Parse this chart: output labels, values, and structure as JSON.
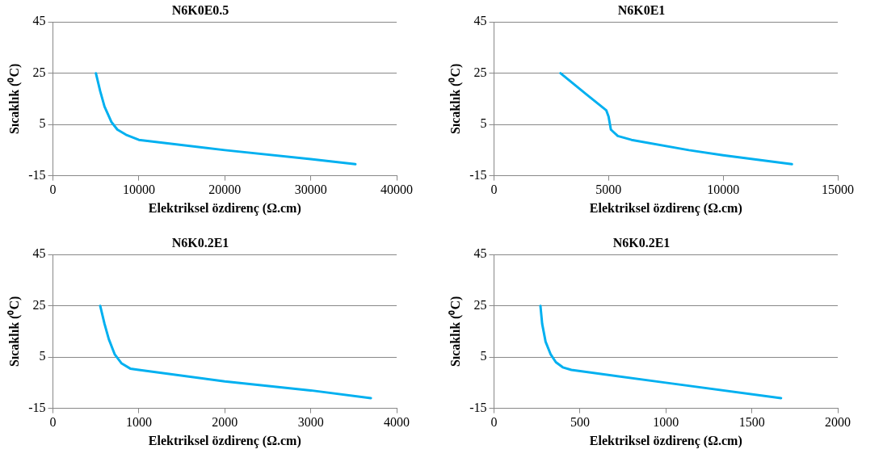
{
  "chart_data": [
    {
      "type": "line",
      "title": "N6K0E0.5",
      "xlabel": "Elektriksel özdirenç (Ω.cm)",
      "ylabel": "Sıcaklık (⁰C)",
      "grid": "y",
      "legend": false,
      "marker": "none",
      "line_style": "solid",
      "xlim": [
        0,
        40000
      ],
      "xticks": [
        0,
        10000,
        20000,
        30000,
        40000
      ],
      "ylim": [
        -15,
        45
      ],
      "yticks": [
        -15,
        5,
        25,
        45
      ],
      "series": [
        {
          "color": "#00b0f0",
          "x": [
            5000,
            5500,
            6000,
            6800,
            7500,
            8500,
            10000,
            20000,
            30000,
            35200
          ],
          "values": [
            25,
            18,
            12,
            6,
            3,
            1,
            -1,
            -5,
            -8.5,
            -10.5
          ]
        }
      ]
    },
    {
      "type": "line",
      "title": "N6K0E1",
      "xlabel": "Elektriksel özdirenç (Ω.cm)",
      "ylabel": "Sıcaklık (⁰C)",
      "grid": "y",
      "legend": false,
      "marker": "none",
      "line_style": "solid",
      "xlim": [
        0,
        15000
      ],
      "xticks": [
        0,
        5000,
        10000,
        15000
      ],
      "ylim": [
        -15,
        45
      ],
      "yticks": [
        -15,
        5,
        25,
        45
      ],
      "series": [
        {
          "color": "#00b0f0",
          "x": [
            2900,
            4000,
            4900,
            5000,
            5100,
            5400,
            6000,
            8500,
            10000,
            13000
          ],
          "values": [
            25,
            17,
            10.5,
            8,
            3,
            0.5,
            -1,
            -5,
            -7,
            -10.5
          ]
        }
      ]
    },
    {
      "type": "line",
      "title": "N6K0.2E1",
      "xlabel": "Elektriksel özdirenç (Ω.cm)",
      "ylabel": "Sıcaklık (⁰C)",
      "grid": "y",
      "legend": false,
      "marker": "none",
      "line_style": "solid",
      "xlim": [
        0,
        4000
      ],
      "xticks": [
        0,
        1000,
        2000,
        3000,
        4000
      ],
      "ylim": [
        -15,
        45
      ],
      "yticks": [
        -15,
        5,
        25,
        45
      ],
      "series": [
        {
          "color": "#00b0f0",
          "x": [
            550,
            600,
            650,
            720,
            800,
            900,
            1000,
            2000,
            3000,
            3700
          ],
          "values": [
            25,
            18,
            12,
            6,
            2.5,
            0.5,
            0,
            -4.5,
            -8,
            -11
          ]
        }
      ]
    },
    {
      "type": "line",
      "title": "N6K0.2E1",
      "xlabel": "Elektriksel özdirenç (Ω.cm)",
      "ylabel": "Sıcaklık (⁰C)",
      "grid": "y",
      "legend": false,
      "marker": "none",
      "line_style": "solid",
      "xlim": [
        0,
        2000
      ],
      "xticks": [
        0,
        500,
        1000,
        1500,
        2000
      ],
      "ylim": [
        -15,
        45
      ],
      "yticks": [
        -15,
        5,
        25,
        45
      ],
      "series": [
        {
          "color": "#00b0f0",
          "x": [
            270,
            280,
            300,
            330,
            360,
            400,
            450,
            1000,
            1670
          ],
          "values": [
            25,
            18,
            11,
            6,
            3,
            1,
            0,
            -5,
            -11
          ]
        }
      ]
    }
  ]
}
